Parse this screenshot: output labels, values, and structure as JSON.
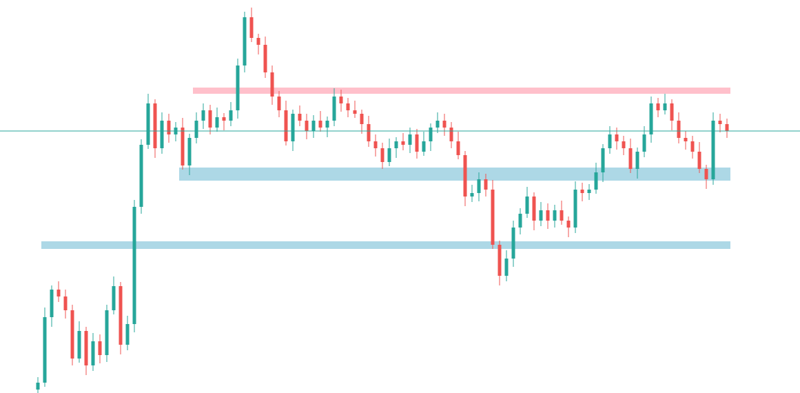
{
  "chart_data": {
    "type": "candlestick",
    "up_color": "#26a69a",
    "down_color": "#ef5350",
    "ylim": [
      0,
      570
    ],
    "open": [
      5,
      15,
      110,
      150,
      140,
      120,
      50,
      90,
      40,
      75,
      55,
      120,
      155,
      70,
      100,
      270,
      360,
      420,
      355,
      395,
      375,
      385,
      330,
      370,
      395,
      410,
      385,
      400,
      395,
      410,
      475,
      545,
      515,
      505,
      465,
      430,
      410,
      365,
      405,
      395,
      380,
      395,
      385,
      395,
      430,
      420,
      410,
      405,
      390,
      365,
      355,
      335,
      355,
      365,
      360,
      375,
      350,
      365,
      385,
      395,
      385,
      365,
      345,
      285,
      290,
      310,
      295,
      215,
      170,
      195,
      240,
      260,
      285,
      250,
      265,
      250,
      265,
      250,
      240,
      295,
      290,
      295,
      320,
      355,
      375,
      365,
      355,
      325,
      350,
      375,
      420,
      410,
      420,
      395,
      370,
      365,
      350,
      325,
      310,
      395,
      390
    ],
    "high": [
      23,
      124,
      156,
      162,
      150,
      128,
      104,
      96,
      87,
      85,
      128,
      169,
      161,
      112,
      280,
      368,
      434,
      426,
      407,
      405,
      393,
      399,
      376,
      407,
      420,
      418,
      414,
      406,
      422,
      485,
      553,
      559,
      521,
      517,
      475,
      438,
      424,
      411,
      417,
      405,
      403,
      409,
      401,
      442,
      440,
      428,
      424,
      411,
      402,
      375,
      363,
      369,
      371,
      377,
      385,
      383,
      379,
      391,
      407,
      405,
      393,
      379,
      351,
      302,
      320,
      318,
      309,
      221,
      207,
      250,
      268,
      299,
      291,
      277,
      275,
      273,
      279,
      256,
      307,
      305,
      303,
      334,
      361,
      387,
      385,
      373,
      369,
      356,
      387,
      430,
      428,
      434,
      426,
      407,
      380,
      373,
      364,
      331,
      407,
      405,
      398
    ],
    "low": [
      0,
      9,
      96,
      132,
      108,
      40,
      44,
      26,
      32,
      43,
      45,
      114,
      56,
      62,
      88,
      260,
      354,
      341,
      347,
      363,
      365,
      324,
      316,
      362,
      383,
      375,
      379,
      381,
      387,
      398,
      465,
      509,
      491,
      457,
      418,
      400,
      359,
      351,
      387,
      368,
      370,
      379,
      371,
      387,
      408,
      400,
      399,
      376,
      357,
      343,
      325,
      329,
      341,
      352,
      348,
      340,
      344,
      351,
      377,
      373,
      355,
      339,
      271,
      277,
      278,
      285,
      209,
      156,
      162,
      183,
      230,
      254,
      236,
      242,
      238,
      240,
      244,
      226,
      232,
      278,
      280,
      289,
      306,
      347,
      353,
      345,
      319,
      311,
      342,
      363,
      400,
      404,
      381,
      362,
      353,
      340,
      319,
      296,
      302,
      378,
      370
    ],
    "close": [
      15,
      110,
      150,
      140,
      120,
      50,
      90,
      40,
      75,
      55,
      120,
      155,
      70,
      100,
      270,
      360,
      420,
      355,
      395,
      375,
      385,
      330,
      370,
      395,
      410,
      385,
      400,
      395,
      410,
      475,
      545,
      515,
      505,
      465,
      430,
      410,
      365,
      405,
      395,
      380,
      395,
      385,
      395,
      430,
      420,
      410,
      405,
      390,
      365,
      355,
      335,
      355,
      365,
      360,
      375,
      350,
      365,
      385,
      395,
      385,
      365,
      345,
      285,
      290,
      310,
      295,
      215,
      170,
      195,
      240,
      260,
      285,
      250,
      265,
      250,
      265,
      250,
      240,
      295,
      290,
      295,
      320,
      355,
      375,
      365,
      355,
      325,
      350,
      375,
      420,
      410,
      420,
      395,
      370,
      365,
      350,
      325,
      310,
      395,
      390,
      380
    ],
    "zones": [
      {
        "low": 434,
        "high": 443,
        "from": 23,
        "color": "#ffc0cb"
      },
      {
        "low": 308,
        "high": 327,
        "from": 21,
        "color": "#add8e6"
      },
      {
        "low": 209,
        "high": 220,
        "from": 1,
        "color": "#add8e6"
      }
    ],
    "price_line": {
      "value": 380,
      "color": "#26a69a"
    }
  }
}
